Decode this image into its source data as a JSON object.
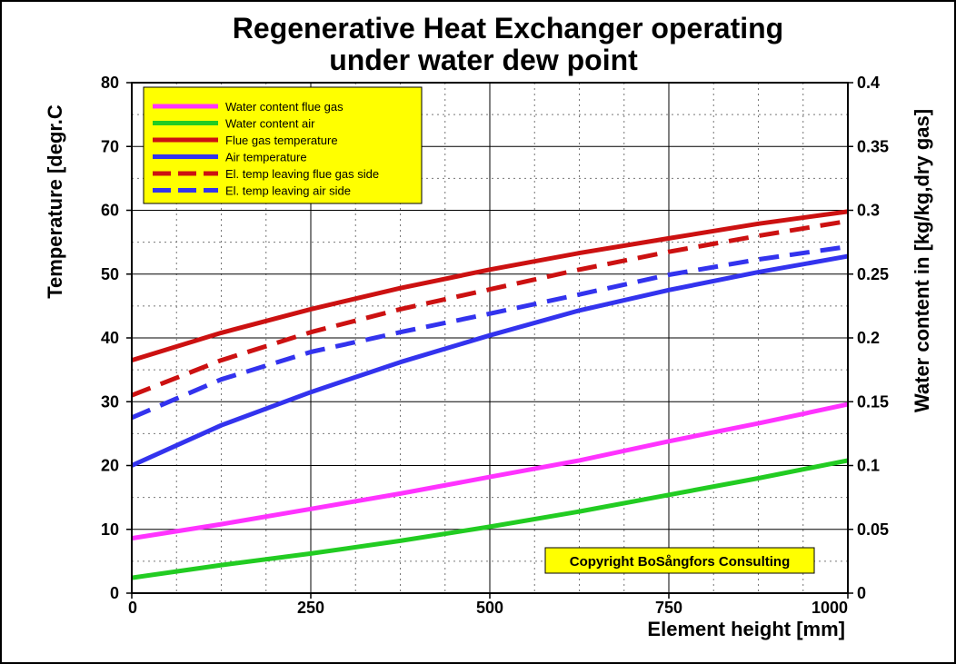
{
  "chart_data": {
    "type": "line",
    "title_line1": "Regenerative Heat Exchanger operating",
    "title_line2": "under water dew point",
    "xlabel": "Element height [mm]",
    "ylabel": "Temperature [degr.C",
    "y2label": "Water content in [kg/kg,dry gas]",
    "xlim": [
      0,
      1000
    ],
    "ylim": [
      0,
      80
    ],
    "y2lim": [
      0,
      0.4
    ],
    "x_ticks": [
      "0",
      "250",
      "500",
      "750",
      "1000"
    ],
    "y_ticks": [
      "0",
      "10",
      "20",
      "30",
      "40",
      "50",
      "60",
      "70",
      "80"
    ],
    "y2_ticks": [
      "0",
      "0.05",
      "0.1",
      "0.15",
      "0.2",
      "0.25",
      "0.3",
      "0.35",
      "0.4"
    ],
    "grid": true,
    "legend_position": "top-left",
    "copyright": "Copyright BoSångfors Consulting",
    "x": [
      0,
      125,
      250,
      375,
      500,
      625,
      750,
      875,
      1000
    ],
    "series": [
      {
        "name": "Water content flue gas",
        "axis": "right",
        "color": "#ff33ff",
        "dash": "solid",
        "values": [
          0.043,
          0.054,
          0.066,
          0.078,
          0.091,
          0.104,
          0.119,
          0.133,
          0.148
        ]
      },
      {
        "name": "Water content air",
        "axis": "right",
        "color": "#22cc22",
        "dash": "solid",
        "values": [
          0.012,
          0.022,
          0.031,
          0.041,
          0.052,
          0.064,
          0.077,
          0.09,
          0.104
        ]
      },
      {
        "name": "Flue gas temperature",
        "axis": "left",
        "color": "#cc1111",
        "dash": "solid",
        "values": [
          36.5,
          40.8,
          44.5,
          47.8,
          50.7,
          53.3,
          55.6,
          57.9,
          59.8
        ]
      },
      {
        "name": "Air temperature",
        "axis": "left",
        "color": "#3333ee",
        "dash": "solid",
        "values": [
          20.0,
          26.3,
          31.5,
          36.2,
          40.4,
          44.3,
          47.5,
          50.3,
          52.8
        ]
      },
      {
        "name": "El. temp leaving flue gas side",
        "axis": "left",
        "color": "#cc1111",
        "dash": "dashed",
        "values": [
          31.0,
          36.5,
          40.9,
          44.5,
          47.6,
          50.7,
          53.5,
          56.0,
          58.3
        ]
      },
      {
        "name": "El. temp leaving air side",
        "axis": "left",
        "color": "#3333ee",
        "dash": "dashed",
        "values": [
          27.5,
          33.5,
          37.8,
          40.9,
          43.8,
          46.8,
          49.9,
          52.3,
          54.3
        ]
      }
    ]
  }
}
